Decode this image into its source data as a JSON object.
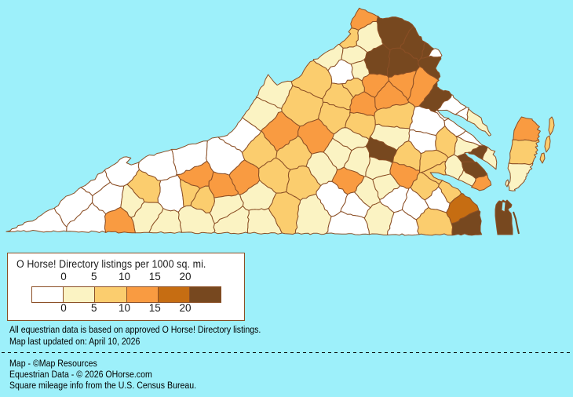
{
  "map": {
    "background_color": "#9DF0FA",
    "border_color": "#8B4F26",
    "palette": [
      "#FFFFFF",
      "#FBF3C3",
      "#FBCD6E",
      "#F99B41",
      "#C66D12",
      "#77481F"
    ]
  },
  "legend": {
    "title": "O Horse! Directory listings per 1000 sq. mi.",
    "ticks": [
      "0",
      "5",
      "10",
      "15",
      "20"
    ]
  },
  "notes": {
    "line1": "All equestrian data is based on approved O Horse! Directory listings.",
    "line2": "Map last updated on: April 10, 2026"
  },
  "credits": {
    "line1": "Map - ©Map Resources",
    "line2": "Equestrian Data - © 2026 OHorse.com",
    "line3": "Square mileage info from the U.S. Census Bureau."
  }
}
